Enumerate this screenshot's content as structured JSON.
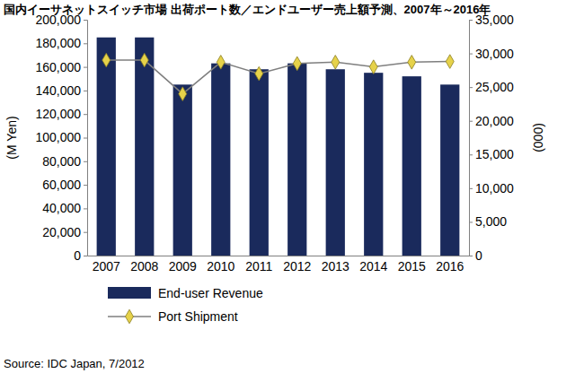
{
  "chart_data": {
    "type": "bar",
    "title": "国内イーサネットスイッチ市場 出荷ポート数／エンドユーザー売上額予測、2007年～2016年",
    "source": "Source: IDC Japan, 7/2012",
    "ylabel": "(M Yen)",
    "y2label": "(000)",
    "categories": [
      "2007",
      "2008",
      "2009",
      "2010",
      "2011",
      "2012",
      "2013",
      "2014",
      "2015",
      "2016"
    ],
    "series": [
      {
        "name": "End-user Revenue",
        "type": "bar",
        "color": "#1a2a5c",
        "values": [
          185000,
          185000,
          145000,
          163000,
          158000,
          163000,
          158000,
          155000,
          152000,
          145000
        ]
      },
      {
        "name": "Port Shipment",
        "type": "line",
        "color": "#7f7f7f",
        "marker": "diamond",
        "axis": "y2",
        "values": [
          29000,
          29000,
          24000,
          28700,
          27000,
          28500,
          28700,
          28000,
          28700,
          28800
        ]
      }
    ],
    "ylim": [
      0,
      200000
    ],
    "yticks": [
      0,
      {
        "value": 20000,
        "label": "20,000"
      },
      {
        "value": 40000,
        "label": "40,000"
      },
      {
        "value": 60000,
        "label": "60,000"
      },
      {
        "value": 80000,
        "label": "80,000"
      },
      {
        "value": 100000,
        "label": "100,000"
      },
      {
        "value": 120000,
        "label": "120,000"
      },
      {
        "value": 140000,
        "label": "140,000"
      },
      {
        "value": 160000,
        "label": "160,000"
      },
      {
        "value": 180000,
        "label": "180,000"
      },
      {
        "value": 200000,
        "label": "200,000"
      }
    ],
    "y2lim": [
      0,
      35000
    ],
    "y2ticks": [
      0,
      {
        "value": 5000,
        "label": "5,000"
      },
      {
        "value": 10000,
        "label": "10,000"
      },
      {
        "value": 15000,
        "label": "15,000"
      },
      {
        "value": 20000,
        "label": "20,000"
      },
      {
        "value": 25000,
        "label": "25,000"
      },
      {
        "value": 30000,
        "label": "30,000"
      },
      {
        "value": 35000,
        "label": "35,000"
      }
    ],
    "grid": false,
    "legend": "bottom"
  }
}
